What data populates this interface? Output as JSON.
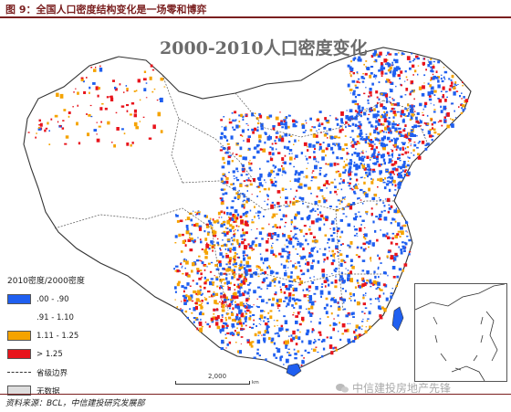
{
  "figure": {
    "caption": "图 9：全国人口密度结构变化是一场零和博弈",
    "source": "资料来源：BCL，中信建投研究发展部"
  },
  "map": {
    "title": "2000-2010人口密度变化",
    "legend": {
      "title": "2010密度/2000密度",
      "items": [
        {
          "label": ".00 - .90",
          "color": "#1f5ff0"
        },
        {
          "label": ".91 - 1.10",
          "color": "#ffffff"
        },
        {
          "label": "1.11 - 1.25",
          "color": "#f5a300"
        },
        {
          "label": "> 1.25",
          "color": "#e8141c"
        },
        {
          "label": "省级边界",
          "color": "#333333"
        },
        {
          "label": "无数据",
          "color": "#dddddd"
        }
      ]
    },
    "scale": {
      "label": "2,000",
      "unit": "km"
    },
    "watermark": "中信建投房地产先锋"
  }
}
